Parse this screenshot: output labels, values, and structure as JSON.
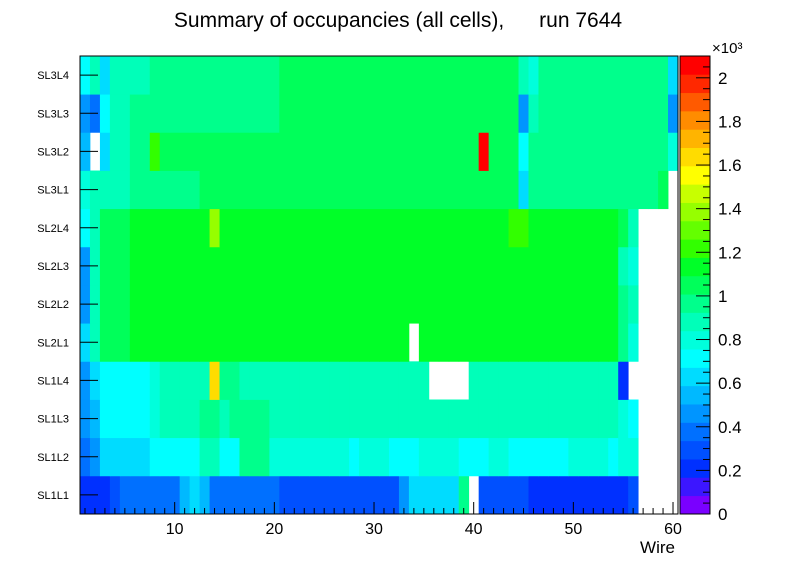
{
  "chart_data": {
    "type": "heatmap",
    "title": "Summary of occupancies (all cells),      run 7644",
    "xlabel": "Wire",
    "ylabel": "",
    "x_range": [
      0.5,
      60.5
    ],
    "x_ticks": [
      10,
      20,
      30,
      40,
      50,
      60
    ],
    "y_categories": [
      "SL1L1",
      "SL1L2",
      "SL1L3",
      "SL1L4",
      "SL2L1",
      "SL2L2",
      "SL2L3",
      "SL2L4",
      "SL3L1",
      "SL3L2",
      "SL3L3",
      "SL3L4"
    ],
    "colorbar": {
      "range": [
        0,
        2100
      ],
      "exponent_label": "×10³",
      "tick_values": [
        0,
        200,
        400,
        600,
        800,
        1000,
        1200,
        1400,
        1600,
        1800,
        2000
      ],
      "tick_labels": [
        "0",
        "0.2",
        "0.4",
        "0.6",
        "0.8",
        "1",
        "1.2",
        "1.4",
        "1.6",
        "1.8",
        "2"
      ]
    },
    "palette": [
      "#7a00ff",
      "#3c16ff",
      "#0030ff",
      "#0050ff",
      "#0070ff",
      "#0095ff",
      "#00b9ff",
      "#00dcff",
      "#00ffff",
      "#00ffdc",
      "#00ffb9",
      "#00ff8c",
      "#00ff5a",
      "#00ff28",
      "#32ff00",
      "#64ff00",
      "#96ff00",
      "#c8ff00",
      "#ffff00",
      "#ffdc00",
      "#ffb400",
      "#ff8c00",
      "#ff5a00",
      "#ff2800",
      "#ff0000"
    ],
    "z_values": [
      [
        200,
        250,
        250,
        300,
        350,
        350,
        350,
        350,
        350,
        350,
        550,
        600,
        550,
        350,
        350,
        350,
        350,
        350,
        350,
        350,
        300,
        300,
        300,
        300,
        300,
        300,
        300,
        300,
        300,
        300,
        300,
        300,
        500,
        650,
        650,
        650,
        650,
        650,
        1000,
        0,
        300,
        300,
        300,
        300,
        300,
        200,
        250,
        200,
        200,
        200,
        200,
        200,
        200,
        200,
        200,
        300,
        0,
        0,
        0,
        0
      ],
      [
        400,
        500,
        650,
        650,
        600,
        650,
        650,
        700,
        750,
        750,
        750,
        750,
        850,
        850,
        750,
        750,
        950,
        950,
        950,
        800,
        800,
        800,
        800,
        800,
        800,
        800,
        800,
        750,
        800,
        800,
        800,
        750,
        750,
        750,
        800,
        800,
        800,
        800,
        750,
        750,
        750,
        800,
        800,
        750,
        750,
        750,
        750,
        750,
        750,
        800,
        800,
        800,
        800,
        750,
        800,
        800,
        0,
        0,
        0,
        0
      ],
      [
        450,
        550,
        700,
        700,
        700,
        750,
        750,
        800,
        850,
        850,
        850,
        850,
        950,
        950,
        850,
        950,
        950,
        950,
        950,
        850,
        850,
        850,
        850,
        850,
        850,
        850,
        850,
        850,
        850,
        850,
        850,
        850,
        850,
        850,
        850,
        850,
        850,
        850,
        850,
        850,
        850,
        850,
        850,
        850,
        850,
        850,
        850,
        850,
        850,
        850,
        850,
        850,
        850,
        850,
        800,
        700,
        0,
        0,
        0,
        0
      ],
      [
        500,
        600,
        750,
        700,
        750,
        700,
        750,
        800,
        850,
        850,
        850,
        850,
        850,
        1600,
        950,
        950,
        900,
        900,
        900,
        900,
        900,
        900,
        900,
        900,
        900,
        900,
        900,
        900,
        900,
        850,
        850,
        850,
        850,
        850,
        850,
        0,
        0,
        0,
        0,
        850,
        850,
        850,
        850,
        850,
        850,
        850,
        850,
        850,
        850,
        850,
        850,
        850,
        850,
        850,
        250,
        0,
        0,
        0,
        0,
        0
      ],
      [
        650,
        850,
        1050,
        1050,
        1050,
        1150,
        1150,
        1150,
        1150,
        1150,
        1150,
        1150,
        1150,
        1150,
        1150,
        1150,
        1150,
        1150,
        1150,
        1150,
        1150,
        1150,
        1150,
        1150,
        1150,
        1150,
        1150,
        1150,
        1150,
        1150,
        1150,
        1150,
        1150,
        0,
        1150,
        1150,
        1150,
        1150,
        1150,
        1150,
        1150,
        1150,
        1150,
        1150,
        1150,
        1150,
        1150,
        1150,
        1150,
        1150,
        1150,
        1150,
        1150,
        1150,
        950,
        800,
        0,
        0,
        0,
        0
      ],
      [
        450,
        850,
        1050,
        1050,
        1050,
        1150,
        1150,
        1150,
        1150,
        1150,
        1150,
        1150,
        1150,
        1150,
        1150,
        1150,
        1150,
        1150,
        1150,
        1150,
        1150,
        1150,
        1150,
        1150,
        1150,
        1150,
        1150,
        1150,
        1150,
        1150,
        1150,
        1150,
        1150,
        1150,
        1150,
        1150,
        1150,
        1150,
        1150,
        1150,
        1150,
        1150,
        1150,
        1150,
        1150,
        1150,
        1150,
        1150,
        1150,
        1150,
        1150,
        1150,
        1150,
        1150,
        1000,
        850,
        0,
        0,
        0,
        0
      ],
      [
        450,
        850,
        1050,
        1050,
        1050,
        1150,
        1150,
        1150,
        1150,
        1150,
        1150,
        1150,
        1150,
        1150,
        1150,
        1150,
        1150,
        1150,
        1150,
        1150,
        1150,
        1150,
        1150,
        1150,
        1150,
        1150,
        1150,
        1150,
        1150,
        1150,
        1150,
        1150,
        1150,
        1150,
        1150,
        1150,
        1150,
        1150,
        1150,
        1150,
        1150,
        1150,
        1150,
        1150,
        1150,
        1150,
        1150,
        1150,
        1150,
        1150,
        1150,
        1150,
        1150,
        1150,
        900,
        800,
        0,
        0,
        0,
        0
      ],
      [
        700,
        850,
        1050,
        1050,
        1050,
        1150,
        1150,
        1150,
        1150,
        1150,
        1150,
        1150,
        1150,
        1350,
        1150,
        1150,
        1150,
        1150,
        1150,
        1150,
        1150,
        1150,
        1150,
        1150,
        1150,
        1150,
        1150,
        1150,
        1150,
        1150,
        1150,
        1150,
        1150,
        1150,
        1150,
        1150,
        1150,
        1150,
        1150,
        1150,
        1150,
        1150,
        1150,
        1250,
        1250,
        1150,
        1150,
        1150,
        1150,
        1150,
        1150,
        1150,
        1150,
        1150,
        1050,
        850,
        0,
        0,
        0,
        0
      ],
      [
        800,
        850,
        900,
        900,
        900,
        950,
        950,
        950,
        950,
        950,
        950,
        950,
        1050,
        1050,
        1050,
        1050,
        1050,
        1050,
        1050,
        1050,
        1050,
        1050,
        1050,
        1050,
        1050,
        1050,
        1050,
        1050,
        1050,
        1050,
        1050,
        1050,
        1050,
        1050,
        1050,
        1050,
        1050,
        1050,
        1050,
        1050,
        1050,
        1050,
        1050,
        1050,
        650,
        950,
        950,
        950,
        950,
        950,
        950,
        950,
        950,
        950,
        950,
        950,
        950,
        950,
        1050,
        0
      ],
      [
        550,
        0,
        600,
        850,
        850,
        950,
        950,
        1250,
        1050,
        1050,
        1050,
        1050,
        1050,
        1050,
        1050,
        1050,
        1050,
        1050,
        1050,
        1050,
        1050,
        1050,
        1050,
        1050,
        1050,
        1050,
        1050,
        1050,
        1050,
        1050,
        1050,
        1050,
        1050,
        1050,
        1050,
        1050,
        1050,
        1050,
        1050,
        1050,
        2050,
        1050,
        1050,
        1050,
        750,
        950,
        950,
        950,
        950,
        950,
        950,
        950,
        950,
        950,
        950,
        950,
        950,
        950,
        950,
        800
      ],
      [
        450,
        350,
        750,
        850,
        900,
        950,
        950,
        950,
        950,
        950,
        950,
        950,
        950,
        950,
        950,
        950,
        950,
        950,
        950,
        950,
        1050,
        1050,
        1050,
        1050,
        1050,
        1050,
        1050,
        1050,
        1050,
        1050,
        1050,
        1050,
        1050,
        1050,
        1050,
        1050,
        1050,
        1050,
        1050,
        1050,
        1050,
        1050,
        1050,
        1050,
        450,
        850,
        950,
        950,
        950,
        950,
        950,
        950,
        950,
        950,
        950,
        950,
        950,
        950,
        950,
        450
      ],
      [
        750,
        850,
        650,
        900,
        900,
        900,
        900,
        950,
        950,
        950,
        950,
        950,
        950,
        950,
        950,
        950,
        950,
        950,
        950,
        950,
        1050,
        1050,
        1050,
        1050,
        1050,
        1050,
        1050,
        1050,
        1050,
        1050,
        1050,
        1050,
        1050,
        1050,
        1050,
        1050,
        1050,
        1050,
        1050,
        1050,
        1050,
        1050,
        1050,
        1050,
        850,
        800,
        950,
        950,
        950,
        950,
        950,
        950,
        950,
        950,
        950,
        950,
        950,
        950,
        950,
        650
      ]
    ]
  }
}
